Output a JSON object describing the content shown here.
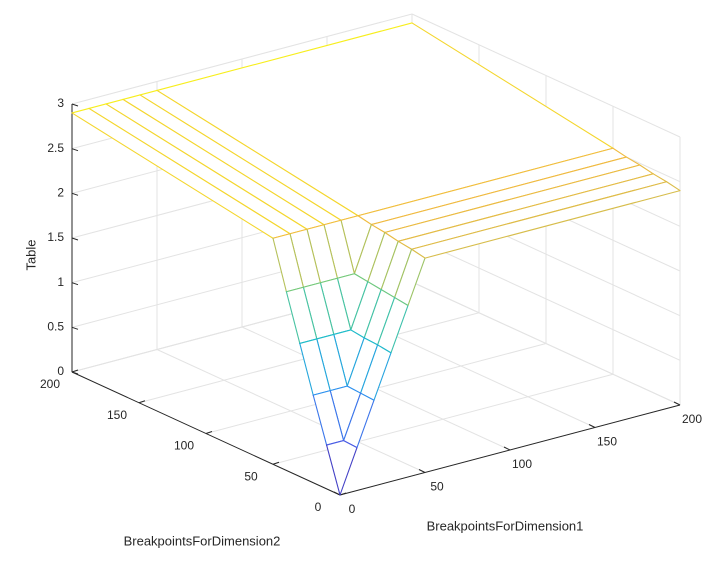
{
  "chart_data": {
    "type": "mesh",
    "xlabel": "BreakpointsForDimension1",
    "ylabel": "BreakpointsForDimension2",
    "zlabel": "Table",
    "x": [
      0,
      10,
      20,
      30,
      40,
      50,
      200
    ],
    "y": [
      0,
      10,
      20,
      30,
      40,
      50,
      200
    ],
    "z": [
      [
        0,
        0.48,
        0.96,
        1.44,
        1.92,
        2.4,
        2.4
      ],
      [
        0.49,
        0.49,
        0.97,
        1.46,
        1.94,
        2.43,
        2.43
      ],
      [
        0.98,
        0.98,
        0.98,
        1.47,
        1.96,
        2.45,
        2.45
      ],
      [
        1.49,
        1.49,
        1.49,
        1.49,
        1.98,
        2.48,
        2.48
      ],
      [
        2,
        2,
        2,
        2,
        2,
        2.5,
        2.5
      ],
      [
        2.53,
        2.53,
        2.53,
        2.53,
        2.53,
        2.53,
        2.53
      ],
      [
        2.9,
        2.9,
        2.9,
        2.9,
        2.9,
        2.9,
        2.9
      ]
    ],
    "xlim": [
      0,
      200
    ],
    "ylim": [
      0,
      200
    ],
    "zlim": [
      0,
      3
    ],
    "xticks": [
      0,
      50,
      100,
      150,
      200
    ],
    "yticks": [
      0,
      50,
      100,
      150,
      200
    ],
    "zticks": [
      0,
      0.5,
      1,
      1.5,
      2,
      2.5,
      3
    ],
    "grid": true,
    "colormap": [
      "#3e26a8",
      "#4a5ee6",
      "#2c93ee",
      "#1fbdc8",
      "#74c97a",
      "#f0ba40",
      "#f9fb14"
    ]
  }
}
